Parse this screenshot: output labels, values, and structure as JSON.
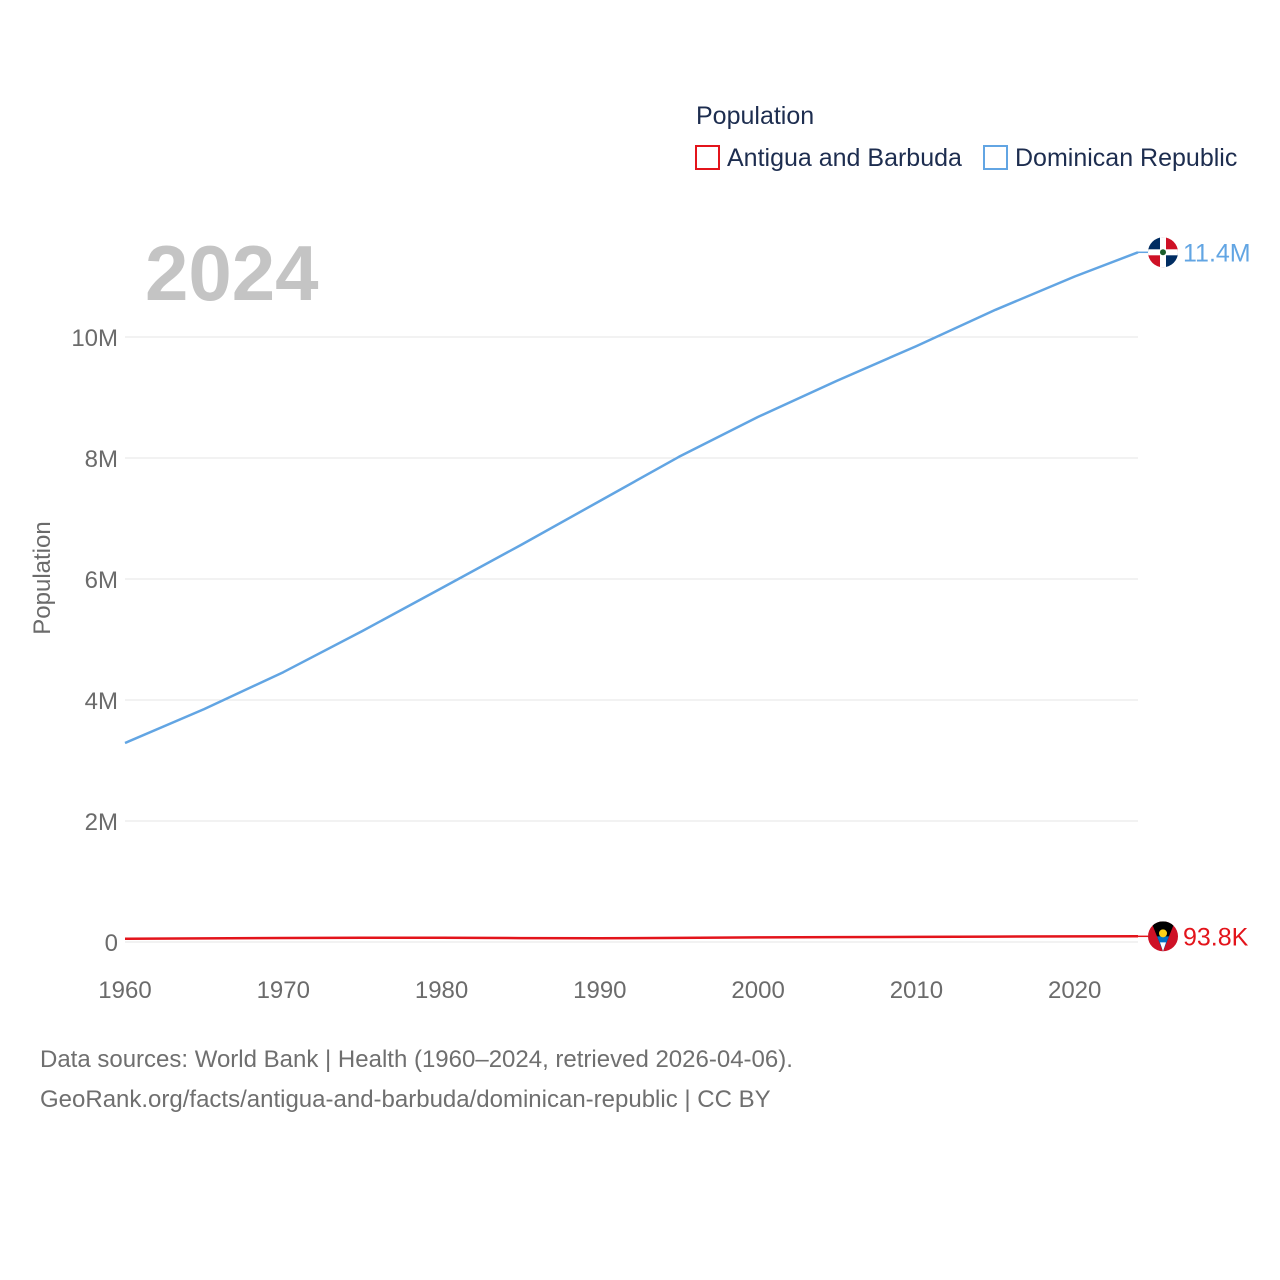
{
  "chart_data": {
    "type": "line",
    "title": "Population",
    "current_year": "2024",
    "ylabel": "Population",
    "xlabel": "",
    "xlim": [
      1960,
      2024
    ],
    "ylim": [
      0,
      11500000
    ],
    "xticks": [
      1960,
      1970,
      1980,
      1990,
      2000,
      2010,
      2020
    ],
    "yticks": [
      {
        "value": 0,
        "label": "0"
      },
      {
        "value": 2000000,
        "label": "2M"
      },
      {
        "value": 4000000,
        "label": "4M"
      },
      {
        "value": 6000000,
        "label": "6M"
      },
      {
        "value": 8000000,
        "label": "8M"
      },
      {
        "value": 10000000,
        "label": "10M"
      }
    ],
    "grid": true,
    "legend_position": "top-right",
    "series": [
      {
        "name": "Antigua and Barbuda",
        "color": "#e3141b",
        "end_label": "93.8K",
        "flag_icon": "antigua-flag-icon",
        "x": [
          1960,
          1965,
          1970,
          1975,
          1980,
          1985,
          1990,
          1995,
          2000,
          2005,
          2010,
          2015,
          2020,
          2024
        ],
        "values": [
          54000,
          60000,
          66000,
          69000,
          69000,
          64000,
          63000,
          68000,
          76000,
          81000,
          85000,
          89000,
          92000,
          93800
        ]
      },
      {
        "name": "Dominican Republic",
        "color": "#62a5e3",
        "end_label": "11.4M",
        "flag_icon": "dominican-republic-flag-icon",
        "x": [
          1960,
          1965,
          1970,
          1975,
          1980,
          1985,
          1990,
          1995,
          2000,
          2005,
          2010,
          2015,
          2020,
          2024
        ],
        "values": [
          3290000,
          3850000,
          4460000,
          5140000,
          5850000,
          6560000,
          7290000,
          8020000,
          8680000,
          9280000,
          9850000,
          10450000,
          11000000,
          11400000
        ]
      }
    ]
  },
  "footer": {
    "line1": "Data sources: World Bank | Health (1960–2024, retrieved 2026-04-06).",
    "line2": "GeoRank.org/facts/antigua-and-barbuda/dominican-republic | CC BY"
  }
}
